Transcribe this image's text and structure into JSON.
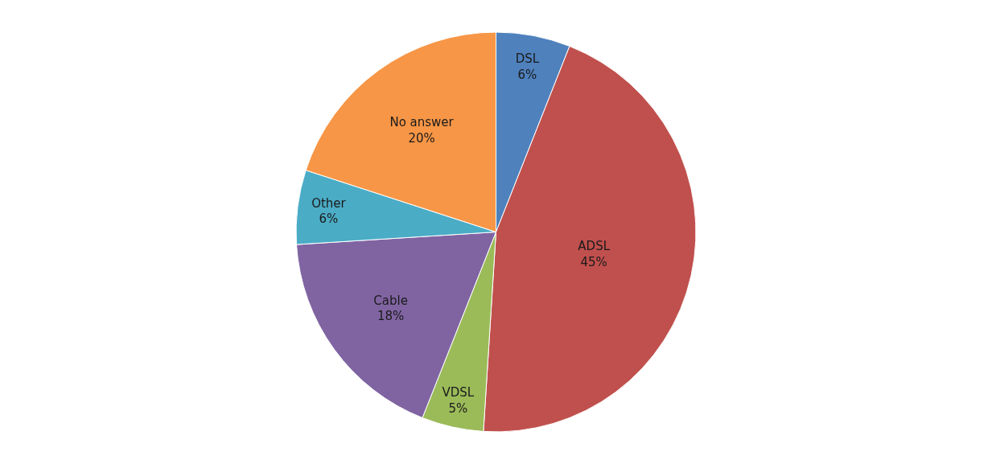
{
  "chart_data": {
    "type": "pie",
    "categories": [
      "DSL",
      "ADSL",
      "VDSL",
      "Cable",
      "Other",
      "No answer"
    ],
    "values": [
      6,
      45,
      5,
      18,
      6,
      20
    ],
    "value_labels": [
      "6%",
      "45%",
      "5%",
      "18%",
      "6%",
      "20%"
    ],
    "colors": [
      "#4f81bd",
      "#c0504d",
      "#9bbb59",
      "#8064a2",
      "#4bacc6",
      "#f79646"
    ],
    "legend": false
  }
}
